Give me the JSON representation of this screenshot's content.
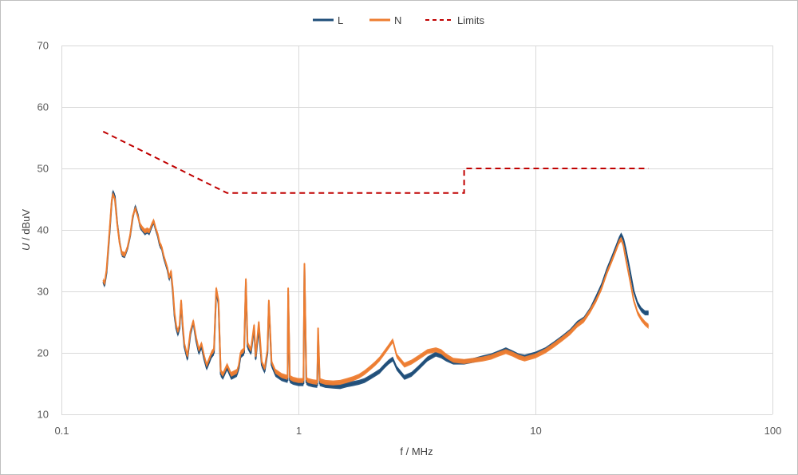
{
  "chart_data": {
    "type": "line",
    "x_scale": "log",
    "xlim": [
      0.1,
      100
    ],
    "ylim": [
      10,
      70
    ],
    "grid": true,
    "legend_position": "top-center",
    "xlabel": "f / MHz",
    "ylabel_italic": "U",
    "ylabel_rest": " / dBuV",
    "x_ticks": [
      {
        "value": 0.1,
        "label": "0.1"
      },
      {
        "value": 1,
        "label": "1"
      },
      {
        "value": 10,
        "label": "10"
      },
      {
        "value": 100,
        "label": "100"
      }
    ],
    "y_ticks": [
      {
        "value": 10,
        "label": "10"
      },
      {
        "value": 20,
        "label": "20"
      },
      {
        "value": 30,
        "label": "30"
      },
      {
        "value": 40,
        "label": "40"
      },
      {
        "value": 50,
        "label": "50"
      },
      {
        "value": 60,
        "label": "60"
      },
      {
        "value": 70,
        "label": "70"
      }
    ],
    "series": [
      {
        "name": "L",
        "color": "#1f4e79",
        "style": "solid",
        "x": [
          0.15,
          0.152,
          0.155,
          0.16,
          0.163,
          0.165,
          0.168,
          0.172,
          0.176,
          0.18,
          0.185,
          0.19,
          0.195,
          0.2,
          0.205,
          0.21,
          0.215,
          0.22,
          0.225,
          0.23,
          0.235,
          0.24,
          0.245,
          0.25,
          0.255,
          0.26,
          0.265,
          0.27,
          0.275,
          0.28,
          0.285,
          0.29,
          0.295,
          0.3,
          0.305,
          0.31,
          0.315,
          0.32,
          0.325,
          0.33,
          0.34,
          0.35,
          0.36,
          0.37,
          0.38,
          0.39,
          0.4,
          0.41,
          0.42,
          0.43,
          0.44,
          0.45,
          0.46,
          0.47,
          0.48,
          0.5,
          0.52,
          0.55,
          0.56,
          0.57,
          0.59,
          0.6,
          0.61,
          0.63,
          0.65,
          0.66,
          0.68,
          0.7,
          0.72,
          0.74,
          0.75,
          0.77,
          0.8,
          0.85,
          0.9,
          0.905,
          0.92,
          0.95,
          1.0,
          1.05,
          1.06,
          1.08,
          1.1,
          1.15,
          1.2,
          1.21,
          1.23,
          1.3,
          1.4,
          1.5,
          1.6,
          1.7,
          1.8,
          1.9,
          2.0,
          2.1,
          2.2,
          2.3,
          2.4,
          2.5,
          2.6,
          2.8,
          3.0,
          3.2,
          3.5,
          3.8,
          4.0,
          4.2,
          4.5,
          5.0,
          5.5,
          6.0,
          6.5,
          7.0,
          7.5,
          8.0,
          8.5,
          9.0,
          10.0,
          11.0,
          12.0,
          13.0,
          14.0,
          15.0,
          16.0,
          17.0,
          18.0,
          19.0,
          20.0,
          21.0,
          22.0,
          22.5,
          23.0,
          23.5,
          24.0,
          25.0,
          26.0,
          27.0,
          28.0,
          29.0,
          30.0
        ],
        "y": [
          31.5,
          31.0,
          33,
          40,
          44.5,
          46.2,
          45.5,
          41,
          38,
          36,
          35.8,
          37,
          39,
          42,
          43.8,
          42.5,
          40.5,
          40,
          39.5,
          39.8,
          39.5,
          40.5,
          41.3,
          40,
          39,
          37.5,
          37,
          35.5,
          34.5,
          33.5,
          32,
          33,
          30,
          26,
          24,
          23,
          24,
          28.2,
          24,
          21,
          19,
          23,
          25,
          22,
          20,
          21,
          19,
          17.5,
          18.5,
          19.5,
          20,
          30,
          28,
          16.5,
          16,
          17.5,
          16,
          16.5,
          17.5,
          19.5,
          20,
          31.5,
          21,
          20,
          24,
          19,
          24,
          18,
          17,
          20,
          28,
          18,
          16.5,
          15.8,
          15.5,
          29.5,
          15.5,
          15.2,
          15.0,
          15.0,
          34,
          15.2,
          15.0,
          14.8,
          14.7,
          23,
          15,
          14.7,
          14.6,
          14.5,
          14.8,
          15.0,
          15.2,
          15.5,
          16,
          16.5,
          17.0,
          17.8,
          18.5,
          19.0,
          17.5,
          16.0,
          16.5,
          17.5,
          19.0,
          19.8,
          19.5,
          19.0,
          18.5,
          18.5,
          18.8,
          19.2,
          19.5,
          20.0,
          20.5,
          20.0,
          19.5,
          19.3,
          19.8,
          20.5,
          21.5,
          22.5,
          23.5,
          24.8,
          25.5,
          27.0,
          29.0,
          31.0,
          33.5,
          35.5,
          37.5,
          38.5,
          39.2,
          38.5,
          37.0,
          33.5,
          30.0,
          28.0,
          27.0,
          26.5,
          26.5
        ],
        "y_band": 0.8
      },
      {
        "name": "N",
        "color": "#ed7d31",
        "style": "solid",
        "x": [
          0.15,
          0.152,
          0.155,
          0.16,
          0.163,
          0.165,
          0.168,
          0.172,
          0.176,
          0.18,
          0.185,
          0.19,
          0.195,
          0.2,
          0.205,
          0.21,
          0.215,
          0.22,
          0.225,
          0.23,
          0.235,
          0.24,
          0.245,
          0.25,
          0.255,
          0.26,
          0.265,
          0.27,
          0.275,
          0.28,
          0.285,
          0.29,
          0.295,
          0.3,
          0.305,
          0.31,
          0.315,
          0.32,
          0.325,
          0.33,
          0.34,
          0.35,
          0.36,
          0.37,
          0.38,
          0.39,
          0.4,
          0.41,
          0.42,
          0.43,
          0.44,
          0.45,
          0.46,
          0.47,
          0.48,
          0.5,
          0.52,
          0.55,
          0.56,
          0.57,
          0.59,
          0.6,
          0.61,
          0.63,
          0.65,
          0.66,
          0.68,
          0.7,
          0.72,
          0.74,
          0.75,
          0.77,
          0.8,
          0.85,
          0.9,
          0.905,
          0.92,
          0.95,
          1.0,
          1.05,
          1.06,
          1.08,
          1.1,
          1.15,
          1.2,
          1.21,
          1.23,
          1.3,
          1.4,
          1.5,
          1.6,
          1.7,
          1.8,
          1.9,
          2.0,
          2.1,
          2.2,
          2.3,
          2.4,
          2.5,
          2.6,
          2.8,
          3.0,
          3.2,
          3.5,
          3.8,
          4.0,
          4.2,
          4.5,
          5.0,
          5.5,
          6.0,
          6.5,
          7.0,
          7.5,
          8.0,
          8.5,
          9.0,
          10.0,
          11.0,
          12.0,
          13.0,
          14.0,
          15.0,
          16.0,
          17.0,
          18.0,
          19.0,
          20.0,
          21.0,
          22.0,
          22.5,
          23.0,
          23.5,
          24.0,
          25.0,
          26.0,
          27.0,
          28.0,
          29.0,
          30.0
        ],
        "y": [
          31.8,
          31.3,
          33.5,
          40.5,
          44.8,
          45.8,
          45.0,
          40.8,
          37.8,
          36.2,
          36.0,
          37.2,
          39.2,
          42.3,
          43.5,
          42.2,
          40.8,
          40.2,
          39.8,
          40.0,
          39.8,
          40.8,
          41.5,
          40.2,
          39.3,
          37.8,
          37.2,
          35.8,
          34.8,
          33.8,
          32.3,
          33.3,
          30.5,
          26.5,
          24.5,
          23.5,
          24.5,
          28.5,
          24.5,
          21.5,
          19.5,
          23.5,
          25.2,
          22.5,
          20.5,
          21.5,
          19.5,
          18.0,
          19.0,
          20.0,
          20.5,
          30.5,
          28.5,
          17.0,
          16.5,
          18.0,
          16.5,
          17.0,
          18.0,
          20.0,
          20.5,
          32.0,
          21.5,
          20.5,
          24.5,
          19.5,
          25.0,
          18.5,
          17.5,
          20.5,
          28.5,
          18.5,
          17.0,
          16.3,
          16.0,
          30.5,
          16.0,
          15.7,
          15.5,
          15.5,
          34.5,
          15.7,
          15.5,
          15.3,
          15.2,
          24,
          15.5,
          15.2,
          15.1,
          15.2,
          15.5,
          15.8,
          16.2,
          16.8,
          17.5,
          18.2,
          19.0,
          20.0,
          21.0,
          22.0,
          19.5,
          18.0,
          18.5,
          19.2,
          20.2,
          20.5,
          20.2,
          19.5,
          18.8,
          18.6,
          18.8,
          19.0,
          19.3,
          19.8,
          20.2,
          19.8,
          19.3,
          19.0,
          19.5,
          20.3,
          21.3,
          22.3,
          23.3,
          24.5,
          25.3,
          26.8,
          28.5,
          30.5,
          33.0,
          35.0,
          37.0,
          38.0,
          38.5,
          37.5,
          35.5,
          32.0,
          28.5,
          26.5,
          25.5,
          24.8,
          24.3
        ],
        "y_band": 0.8
      },
      {
        "name": "Limits",
        "color": "#c00000",
        "style": "dashed",
        "x": [
          0.15,
          0.5,
          5.0,
          5.0,
          30.0
        ],
        "y": [
          56,
          46,
          46,
          50,
          50
        ]
      }
    ]
  }
}
